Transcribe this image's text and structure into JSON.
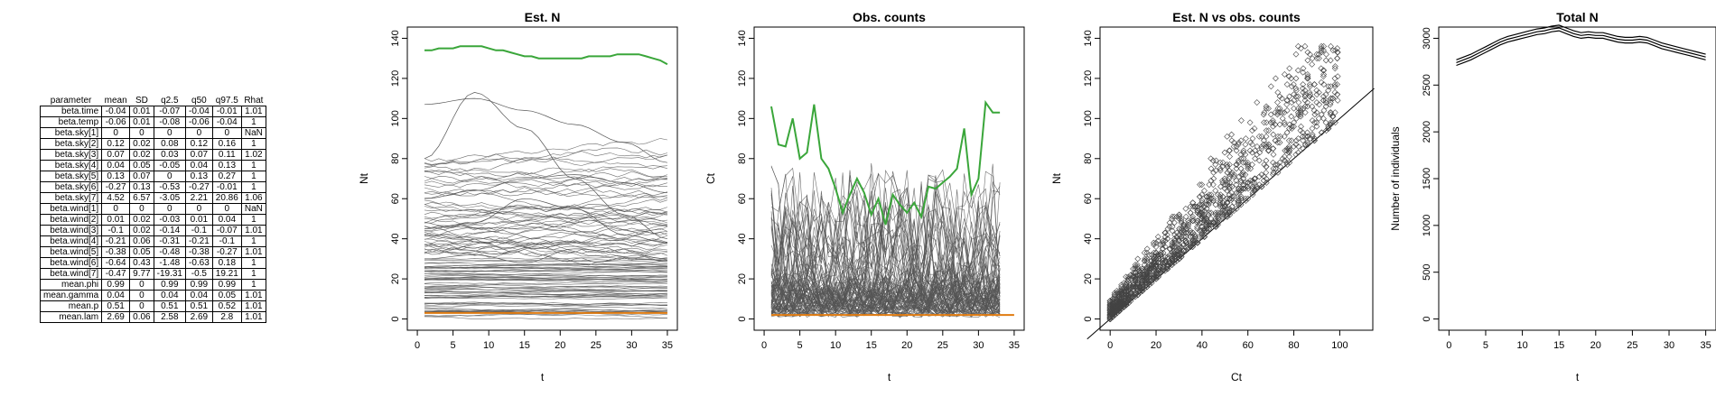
{
  "param_table": {
    "headers": [
      "parameter",
      "mean",
      "SD",
      "q2.5",
      "q50",
      "q97.5",
      "Rhat"
    ],
    "rows": [
      [
        "beta.time",
        "-0.04",
        "0.01",
        "-0.07",
        "-0.04",
        "-0.01",
        "1.01"
      ],
      [
        "beta.temp",
        "-0.06",
        "0.01",
        "-0.08",
        "-0.06",
        "-0.04",
        "1"
      ],
      [
        "beta.sky[1]",
        "0",
        "0",
        "0",
        "0",
        "0",
        "NaN"
      ],
      [
        "beta.sky[2]",
        "0.12",
        "0.02",
        "0.08",
        "0.12",
        "0.16",
        "1"
      ],
      [
        "beta.sky[3]",
        "0.07",
        "0.02",
        "0.03",
        "0.07",
        "0.11",
        "1.02"
      ],
      [
        "beta.sky[4]",
        "0.04",
        "0.05",
        "-0.05",
        "0.04",
        "0.13",
        "1"
      ],
      [
        "beta.sky[5]",
        "0.13",
        "0.07",
        "0",
        "0.13",
        "0.27",
        "1"
      ],
      [
        "beta.sky[6]",
        "-0.27",
        "0.13",
        "-0.53",
        "-0.27",
        "-0.01",
        "1"
      ],
      [
        "beta.sky[7]",
        "4.52",
        "6.57",
        "-3.05",
        "2.21",
        "20.86",
        "1.06"
      ],
      [
        "beta.wind[1]",
        "0",
        "0",
        "0",
        "0",
        "0",
        "NaN"
      ],
      [
        "beta.wind[2]",
        "0.01",
        "0.02",
        "-0.03",
        "0.01",
        "0.04",
        "1"
      ],
      [
        "beta.wind[3]",
        "-0.1",
        "0.02",
        "-0.14",
        "-0.1",
        "-0.07",
        "1.01"
      ],
      [
        "beta.wind[4]",
        "-0.21",
        "0.06",
        "-0.31",
        "-0.21",
        "-0.1",
        "1"
      ],
      [
        "beta.wind[5]",
        "-0.38",
        "0.05",
        "-0.48",
        "-0.38",
        "-0.27",
        "1.01"
      ],
      [
        "beta.wind[6]",
        "-0.64",
        "0.43",
        "-1.48",
        "-0.63",
        "0.18",
        "1"
      ],
      [
        "beta.wind[7]",
        "-0.47",
        "9.77",
        "-19.31",
        "-0.5",
        "19.21",
        "1"
      ],
      [
        "mean.phi",
        "0.99",
        "0",
        "0.99",
        "0.99",
        "0.99",
        "1"
      ],
      [
        "mean.gamma",
        "0.04",
        "0",
        "0.04",
        "0.04",
        "0.05",
        "1.01"
      ],
      [
        "mean.p",
        "0.51",
        "0",
        "0.51",
        "0.51",
        "0.52",
        "1.01"
      ],
      [
        "mean.lam",
        "2.69",
        "0.06",
        "2.58",
        "2.69",
        "2.8",
        "1.01"
      ]
    ]
  },
  "colors": {
    "green": "#3aa63a",
    "orange": "#e07b10",
    "grey": "#555555"
  },
  "chart_data": [
    {
      "type": "line",
      "title": "Est. N",
      "xlabel": "t",
      "ylabel": "Nt",
      "xlim": [
        0,
        35
      ],
      "ylim": [
        0,
        140
      ],
      "xticks": [
        0,
        5,
        10,
        15,
        20,
        25,
        30,
        35
      ],
      "yticks": [
        0,
        20,
        40,
        60,
        80,
        100,
        120,
        140
      ],
      "series": [
        {
          "color": "#3aa63a",
          "x": [
            1,
            2,
            3,
            4,
            5,
            6,
            7,
            8,
            9,
            10,
            11,
            12,
            13,
            14,
            15,
            16,
            17,
            18,
            19,
            20,
            21,
            22,
            23,
            24,
            25,
            26,
            27,
            28,
            29,
            30,
            31,
            32,
            33,
            34,
            35
          ],
          "values": [
            134,
            134,
            135,
            135,
            135,
            136,
            136,
            136,
            136,
            135,
            134,
            134,
            133,
            132,
            131,
            131,
            130,
            130,
            130,
            130,
            130,
            130,
            130,
            131,
            131,
            131,
            131,
            132,
            132,
            132,
            132,
            131,
            130,
            129,
            127
          ]
        },
        {
          "color": "#e07b10",
          "x": [
            1,
            35
          ],
          "values": [
            3,
            3
          ]
        },
        {
          "color": "#555555",
          "note": "many individual site trajectories",
          "x": [
            1,
            8,
            15,
            22,
            29,
            35
          ],
          "values": [
            107,
            110,
            104,
            97,
            88,
            78
          ]
        },
        {
          "color": "#555555",
          "x": [
            1,
            8,
            15,
            22,
            29,
            35
          ],
          "values": [
            80,
            113,
            95,
            70,
            52,
            40
          ]
        },
        {
          "color": "#555555",
          "x": [
            1,
            8,
            15,
            22,
            29,
            35
          ],
          "values": [
            60,
            64,
            70,
            72,
            68,
            63
          ]
        },
        {
          "color": "#555555",
          "x": [
            1,
            8,
            15,
            22,
            29,
            35
          ],
          "values": [
            45,
            48,
            60,
            55,
            42,
            38
          ]
        },
        {
          "color": "#555555",
          "x": [
            1,
            8,
            15,
            22,
            29,
            35
          ],
          "values": [
            30,
            32,
            28,
            35,
            33,
            30
          ]
        }
      ]
    },
    {
      "type": "line",
      "title": "Obs. counts",
      "xlabel": "t",
      "ylabel": "Ct",
      "xlim": [
        0,
        35
      ],
      "ylim": [
        0,
        140
      ],
      "xticks": [
        0,
        5,
        10,
        15,
        20,
        25,
        30,
        35
      ],
      "yticks": [
        0,
        20,
        40,
        60,
        80,
        100,
        120,
        140
      ],
      "series": [
        {
          "color": "#3aa63a",
          "x": [
            1,
            2,
            3,
            4,
            5,
            6,
            7,
            8,
            9,
            10,
            11,
            12,
            13,
            14,
            15,
            16,
            17,
            18,
            19,
            20,
            21,
            22,
            23,
            24,
            25,
            26,
            27,
            28,
            29,
            30,
            31,
            32,
            33
          ],
          "values": [
            106,
            87,
            86,
            100,
            80,
            83,
            107,
            80,
            75,
            65,
            53,
            62,
            70,
            63,
            52,
            60,
            47,
            62,
            57,
            53,
            58,
            51,
            66,
            65,
            68,
            71,
            75,
            95,
            62,
            70,
            108,
            103,
            103
          ]
        },
        {
          "color": "#e07b10",
          "x": [
            1,
            35
          ],
          "values": [
            2,
            2
          ]
        }
      ]
    },
    {
      "type": "scatter",
      "title": "Est. N vs obs. counts",
      "xlabel": "Ct",
      "ylabel": "Nt",
      "xlim": [
        0,
        110
      ],
      "ylim": [
        0,
        140
      ],
      "xticks": [
        0,
        20,
        40,
        60,
        80,
        100
      ],
      "yticks": [
        0,
        20,
        40,
        60,
        80,
        100,
        120,
        140
      ],
      "reference_line": "y = x",
      "marker": "open diamond"
    },
    {
      "type": "line",
      "title": "Total N",
      "xlabel": "t",
      "ylabel": "Number of individuals",
      "xlim": [
        0,
        35
      ],
      "ylim": [
        0,
        3000
      ],
      "xticks": [
        0,
        5,
        10,
        15,
        20,
        25,
        30,
        35
      ],
      "yticks": [
        0,
        500,
        1000,
        1500,
        2000,
        2500,
        3000
      ],
      "x": [
        1,
        2,
        3,
        4,
        5,
        6,
        7,
        8,
        9,
        10,
        11,
        12,
        13,
        14,
        15,
        16,
        17,
        18,
        19,
        20,
        21,
        22,
        23,
        24,
        25,
        26,
        27,
        28,
        29,
        30,
        31,
        32,
        33,
        34,
        35
      ],
      "values": [
        2740,
        2770,
        2800,
        2840,
        2880,
        2920,
        2960,
        2990,
        3010,
        3030,
        3050,
        3070,
        3080,
        3100,
        3110,
        3080,
        3050,
        3030,
        3040,
        3030,
        3030,
        3010,
        2990,
        2980,
        2980,
        2990,
        2980,
        2950,
        2920,
        2900,
        2880,
        2860,
        2840,
        2820,
        2800
      ],
      "band": 30
    }
  ]
}
